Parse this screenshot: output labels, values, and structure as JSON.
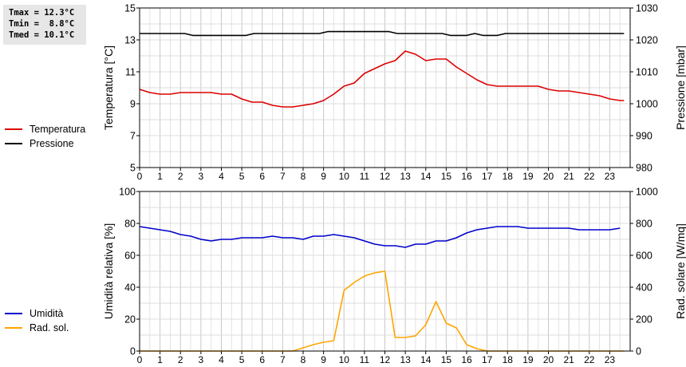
{
  "stats": {
    "tmax": "Tmax = 12.3°C",
    "tmin": "Tmin =  8.8°C",
    "tmed": "Tmed = 10.1°C"
  },
  "chart_data": [
    {
      "type": "line",
      "xlim": [
        0,
        24
      ],
      "xticks": [
        "0",
        "1",
        "2",
        "3",
        "4",
        "5",
        "6",
        "7",
        "8",
        "9",
        "10",
        "11",
        "12",
        "13",
        "14",
        "15",
        "16",
        "17",
        "18",
        "19",
        "20",
        "21",
        "22",
        "23"
      ],
      "ylabel": "Temperatura [°C]",
      "ylim": [
        5,
        15
      ],
      "yticks": [
        "5",
        "7",
        "9",
        "11",
        "13",
        "15"
      ],
      "y2label": "Pressione [mbar]",
      "y2lim": [
        980,
        1030
      ],
      "y2ticks": [
        "980",
        "990",
        "1000",
        "1010",
        "1020",
        "1030"
      ],
      "grid": true,
      "legend": [
        "Temperatura",
        "Pressione"
      ],
      "series": [
        {
          "name": "Temperatura",
          "axis": "left",
          "color": "#dd0000",
          "points": [
            [
              0,
              9.9
            ],
            [
              0.5,
              9.7
            ],
            [
              1,
              9.6
            ],
            [
              1.5,
              9.6
            ],
            [
              2,
              9.7
            ],
            [
              3,
              9.7
            ],
            [
              3.5,
              9.7
            ],
            [
              4,
              9.6
            ],
            [
              4.5,
              9.6
            ],
            [
              5,
              9.3
            ],
            [
              5.5,
              9.1
            ],
            [
              6,
              9.1
            ],
            [
              6.5,
              8.9
            ],
            [
              7,
              8.8
            ],
            [
              7.5,
              8.8
            ],
            [
              8,
              8.9
            ],
            [
              8.5,
              9.0
            ],
            [
              9,
              9.2
            ],
            [
              9.5,
              9.6
            ],
            [
              10,
              10.1
            ],
            [
              10.5,
              10.3
            ],
            [
              11,
              10.9
            ],
            [
              11.5,
              11.2
            ],
            [
              12,
              11.5
            ],
            [
              12.5,
              11.7
            ],
            [
              13,
              12.3
            ],
            [
              13.5,
              12.1
            ],
            [
              14,
              11.7
            ],
            [
              14.5,
              11.8
            ],
            [
              15,
              11.8
            ],
            [
              15.5,
              11.3
            ],
            [
              16,
              10.9
            ],
            [
              16.5,
              10.5
            ],
            [
              17,
              10.2
            ],
            [
              17.5,
              10.1
            ],
            [
              18,
              10.1
            ],
            [
              18.5,
              10.1
            ],
            [
              19,
              10.1
            ],
            [
              19.5,
              10.1
            ],
            [
              20,
              9.9
            ],
            [
              20.5,
              9.8
            ],
            [
              21,
              9.8
            ],
            [
              21.5,
              9.7
            ],
            [
              22,
              9.6
            ],
            [
              22.5,
              9.5
            ],
            [
              23,
              9.3
            ],
            [
              23.5,
              9.2
            ],
            [
              23.7,
              9.2
            ]
          ]
        },
        {
          "name": "Pressione",
          "axis": "right",
          "color": "#000000",
          "points": [
            [
              0,
              1022
            ],
            [
              2.2,
              1022
            ],
            [
              2.6,
              1021.4
            ],
            [
              5.2,
              1021.4
            ],
            [
              5.6,
              1022
            ],
            [
              8.8,
              1022
            ],
            [
              9.2,
              1022.6
            ],
            [
              12.2,
              1022.6
            ],
            [
              12.6,
              1022
            ],
            [
              14.8,
              1022
            ],
            [
              15.2,
              1021.4
            ],
            [
              16,
              1021.4
            ],
            [
              16.4,
              1022
            ],
            [
              16.8,
              1021.4
            ],
            [
              17.5,
              1021.4
            ],
            [
              17.9,
              1022
            ],
            [
              23.7,
              1022
            ]
          ]
        }
      ]
    },
    {
      "type": "line",
      "xlim": [
        0,
        24
      ],
      "xticks": [
        "0",
        "1",
        "2",
        "3",
        "4",
        "5",
        "6",
        "7",
        "8",
        "9",
        "10",
        "11",
        "12",
        "13",
        "14",
        "15",
        "16",
        "17",
        "18",
        "19",
        "20",
        "21",
        "22",
        "23"
      ],
      "ylabel": "Umidità relativa [%]",
      "ylim": [
        0,
        100
      ],
      "yticks": [
        "0",
        "20",
        "40",
        "60",
        "80",
        "100"
      ],
      "y2label": "Rad. solare [W/mq]",
      "y2lim": [
        0,
        1000
      ],
      "y2ticks": [
        "0",
        "200",
        "400",
        "600",
        "800",
        "1000"
      ],
      "grid": true,
      "legend": [
        "Umidità",
        "Rad. sol."
      ],
      "series": [
        {
          "name": "Umidità",
          "axis": "left",
          "color": "#0000cc",
          "points": [
            [
              0,
              78
            ],
            [
              0.5,
              77
            ],
            [
              1,
              76
            ],
            [
              1.5,
              75
            ],
            [
              2,
              73
            ],
            [
              2.5,
              72
            ],
            [
              3,
              70
            ],
            [
              3.5,
              69
            ],
            [
              4,
              70
            ],
            [
              4.5,
              70
            ],
            [
              5,
              71
            ],
            [
              5.5,
              71
            ],
            [
              6,
              71
            ],
            [
              6.5,
              72
            ],
            [
              7,
              71
            ],
            [
              7.5,
              71
            ],
            [
              8,
              70
            ],
            [
              8.5,
              72
            ],
            [
              9,
              72
            ],
            [
              9.5,
              73
            ],
            [
              10,
              72
            ],
            [
              10.5,
              71
            ],
            [
              11,
              69
            ],
            [
              11.5,
              67
            ],
            [
              12,
              66
            ],
            [
              12.5,
              66
            ],
            [
              13,
              65
            ],
            [
              13.5,
              67
            ],
            [
              14,
              67
            ],
            [
              14.5,
              69
            ],
            [
              15,
              69
            ],
            [
              15.5,
              71
            ],
            [
              16,
              74
            ],
            [
              16.5,
              76
            ],
            [
              17,
              77
            ],
            [
              17.5,
              78
            ],
            [
              18,
              78
            ],
            [
              18.5,
              78
            ],
            [
              19,
              77
            ],
            [
              19.5,
              77
            ],
            [
              20,
              77
            ],
            [
              20.5,
              77
            ],
            [
              21,
              77
            ],
            [
              21.5,
              76
            ],
            [
              22,
              76
            ],
            [
              22.5,
              76
            ],
            [
              23,
              76
            ],
            [
              23.5,
              77
            ]
          ]
        },
        {
          "name": "Rad. sol.",
          "axis": "right",
          "color": "#ffa500",
          "points": [
            [
              0,
              0
            ],
            [
              7.5,
              0
            ],
            [
              8,
              20
            ],
            [
              8.5,
              40
            ],
            [
              9,
              55
            ],
            [
              9.5,
              65
            ],
            [
              10,
              380
            ],
            [
              10.5,
              430
            ],
            [
              11,
              470
            ],
            [
              11.5,
              490
            ],
            [
              12,
              500
            ],
            [
              12.5,
              85
            ],
            [
              13,
              85
            ],
            [
              13.5,
              95
            ],
            [
              14,
              165
            ],
            [
              14.5,
              310
            ],
            [
              15,
              175
            ],
            [
              15.5,
              145
            ],
            [
              16,
              40
            ],
            [
              16.5,
              15
            ],
            [
              17,
              0
            ],
            [
              23.7,
              0
            ]
          ]
        }
      ]
    }
  ]
}
